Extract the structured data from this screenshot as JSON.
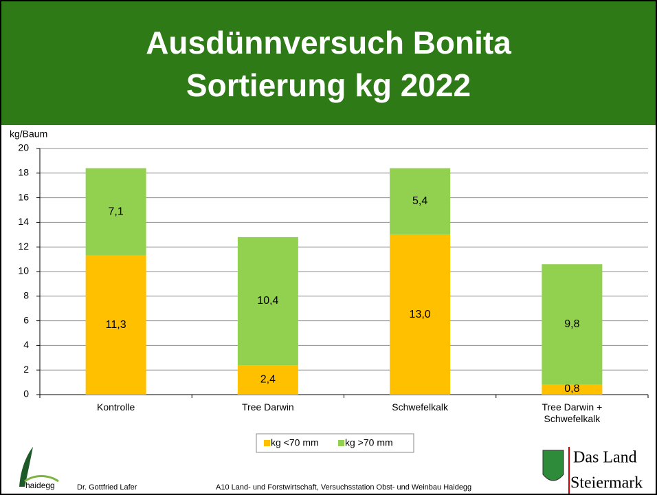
{
  "title": [
    "Ausdünnversuch Bonita",
    "Sortierung kg 2022"
  ],
  "chart_data": {
    "type": "stacked_bar",
    "y_axis_label": "kg/Baum",
    "categories": [
      "Kontrolle",
      "Tree Darwin",
      "Schwefelkalk",
      "Tree Darwin + Schwefelkalk"
    ],
    "series": [
      {
        "name": "kg <70 mm",
        "color": "#ffc000",
        "values": [
          11.3,
          2.4,
          13.0,
          0.8
        ],
        "value_labels": [
          "11,3",
          "2,4",
          "13,0",
          "0,8"
        ]
      },
      {
        "name": "kg >70 mm",
        "color": "#92d050",
        "values": [
          7.1,
          10.4,
          5.4,
          9.8
        ],
        "value_labels": [
          "7,1",
          "10,4",
          "5,4",
          "9,8"
        ]
      }
    ],
    "ylim": [
      0,
      20
    ],
    "yticks": [
      0,
      2,
      4,
      6,
      8,
      10,
      12,
      14,
      16,
      18,
      20
    ],
    "grid": true
  },
  "footer": {
    "logo_text": "haidegg",
    "author": "Dr. Gottfried Lafer",
    "institution": "A10 Land- und Forstwirtschaft, Versuchsstation Obst- und Weinbau Haidegg",
    "brand": [
      "Das Land",
      "Steiermark"
    ]
  }
}
